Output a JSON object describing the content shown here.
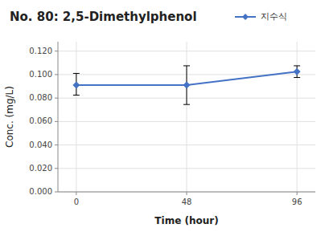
{
  "chart_data": {
    "type": "line",
    "title": "No. 80: 2,5-Dimethylphenol",
    "xlabel": "Time (hour)",
    "ylabel": "Conc. (mg/L)",
    "x": [
      0,
      48,
      96
    ],
    "series": [
      {
        "name": "지수식",
        "color": "#4472C4",
        "marker": "diamond",
        "values": [
          0.091,
          0.091,
          0.1025
        ],
        "error_low": [
          0.0085,
          0.0165,
          0.005
        ],
        "error_high": [
          0.01,
          0.0165,
          0.005
        ]
      }
    ],
    "xlim": [
      -8,
      104
    ],
    "ylim": [
      0.0,
      0.128
    ],
    "xticks": [
      0,
      48,
      96
    ],
    "yticks": [
      {
        "value": 0.0,
        "label": "0.000"
      },
      {
        "value": 0.02,
        "label": "0.020"
      },
      {
        "value": 0.04,
        "label": "0.040"
      },
      {
        "value": 0.06,
        "label": "0.060"
      },
      {
        "value": 0.08,
        "label": "0.080"
      },
      {
        "value": 0.1,
        "label": "0.100"
      },
      {
        "value": 0.12,
        "label": "0.120"
      }
    ],
    "grid": true,
    "legend": "top"
  }
}
